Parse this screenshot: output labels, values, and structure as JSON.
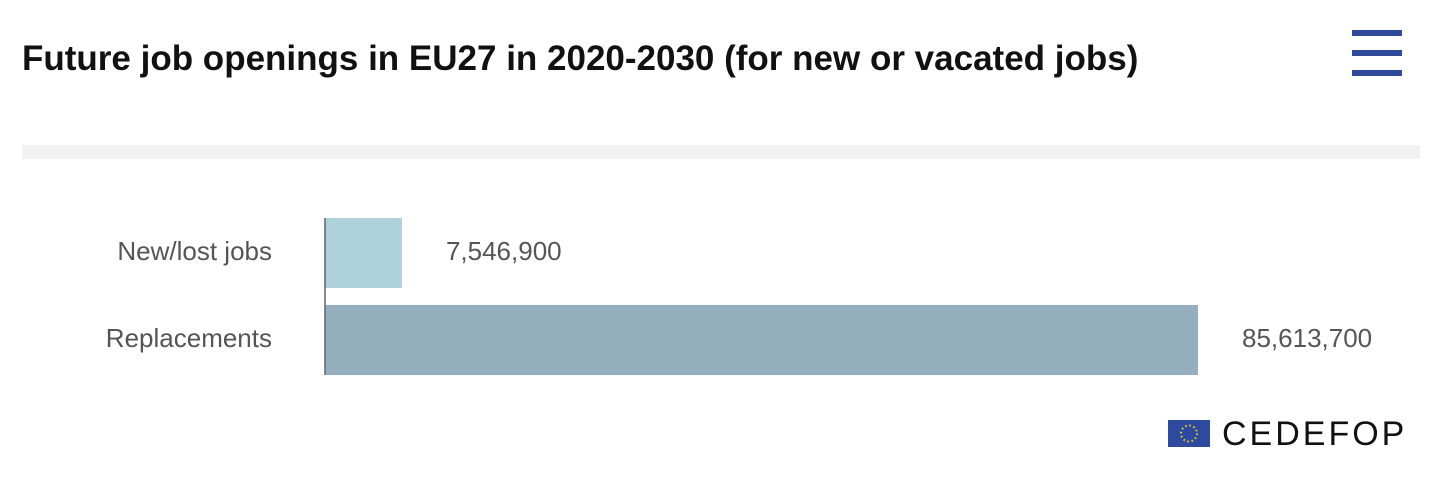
{
  "chart_data": {
    "type": "bar",
    "orientation": "horizontal",
    "title": "Future job openings in EU27 in 2020-2030 (for new or vacated jobs)",
    "categories": [
      "New/lost jobs",
      "Replacements"
    ],
    "values": [
      7546900,
      85613700
    ],
    "value_labels": [
      "7,546,900",
      "85,613,700"
    ],
    "colors": [
      "#aed1dc",
      "#94afbe"
    ]
  },
  "logo": "CEDEFOP"
}
